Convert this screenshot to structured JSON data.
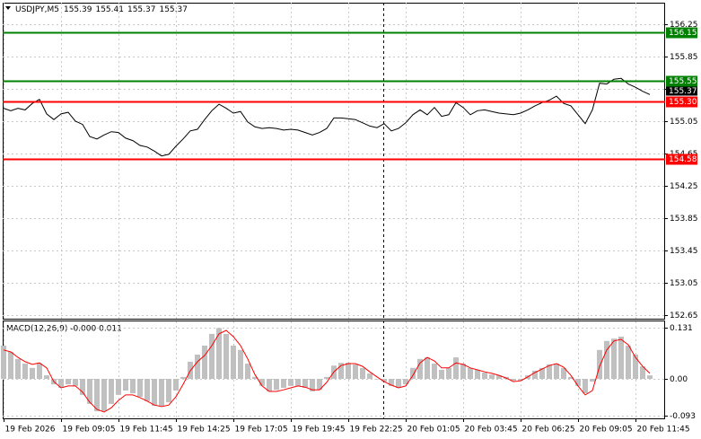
{
  "chart_data": [
    {
      "type": "line",
      "title": "USDJPY,M5",
      "ohlc": [
        155.39,
        155.41,
        155.37,
        155.37
      ],
      "color": "#000000",
      "values": [
        155.21,
        155.18,
        155.21,
        155.19,
        155.27,
        155.32,
        155.14,
        155.07,
        155.14,
        155.16,
        155.05,
        155.01,
        154.86,
        154.83,
        154.88,
        154.92,
        154.91,
        154.84,
        154.81,
        154.75,
        154.73,
        154.68,
        154.62,
        154.64,
        154.74,
        154.83,
        154.93,
        154.95,
        155.07,
        155.18,
        155.26,
        155.21,
        155.15,
        155.17,
        155.04,
        154.98,
        154.96,
        154.97,
        154.96,
        154.94,
        154.95,
        154.94,
        154.91,
        154.88,
        154.91,
        154.96,
        155.09,
        155.09,
        155.08,
        155.07,
        155.03,
        154.99,
        154.97,
        155.02,
        154.93,
        154.96,
        155.03,
        155.13,
        155.19,
        155.13,
        155.22,
        155.11,
        155.13,
        155.28,
        155.22,
        155.13,
        155.18,
        155.19,
        155.17,
        155.15,
        155.14,
        155.13,
        155.15,
        155.19,
        155.24,
        155.28,
        155.31,
        155.36,
        155.27,
        155.24,
        155.13,
        155.02,
        155.19,
        155.52,
        155.51,
        155.57,
        155.58,
        155.51,
        155.47,
        155.42,
        155.38
      ],
      "xlim": [
        -0.125,
        92.125
      ],
      "ylim": [
        152.606,
        156.517
      ],
      "yticks": [
        156.25,
        155.85,
        155.45,
        155.05,
        154.65,
        154.25,
        153.85,
        153.45,
        153.05,
        152.65
      ],
      "grid": true,
      "levels": [
        {
          "value": 156.15,
          "color": "#008000"
        },
        {
          "value": 155.55,
          "color": "#008000"
        },
        {
          "value": 155.3,
          "label": "155.30",
          "color": "#ff0000"
        },
        {
          "value": 154.58,
          "color": "#ff0000"
        }
      ]
    },
    {
      "type": "macd",
      "title": "MACD(12,26,9) -0.000 0.011",
      "histogram": {
        "color": "#c0c0c0",
        "values": [
          0.085,
          0.069,
          0.051,
          0.039,
          0.028,
          0.039,
          0.009,
          -0.014,
          -0.023,
          -0.014,
          -0.018,
          -0.041,
          -0.064,
          -0.083,
          -0.083,
          -0.064,
          -0.041,
          -0.03,
          -0.037,
          -0.046,
          -0.057,
          -0.069,
          -0.069,
          -0.06,
          -0.03,
          0.005,
          0.044,
          0.062,
          0.085,
          0.115,
          0.13,
          0.115,
          0.085,
          0.074,
          0.039,
          0.005,
          -0.018,
          -0.032,
          -0.028,
          -0.023,
          -0.018,
          -0.018,
          -0.023,
          -0.032,
          -0.028,
          0.005,
          0.034,
          0.041,
          0.041,
          0.037,
          0.028,
          0.014,
          0.0,
          -0.007,
          -0.018,
          -0.023,
          -0.014,
          0.028,
          0.051,
          0.055,
          0.039,
          0.023,
          0.028,
          0.055,
          0.039,
          0.028,
          0.023,
          0.016,
          0.011,
          0.009,
          0.005,
          -0.005,
          -0.005,
          0.009,
          0.021,
          0.028,
          0.037,
          0.039,
          0.028,
          0.005,
          -0.018,
          -0.037,
          -0.007,
          0.074,
          0.097,
          0.103,
          0.108,
          0.085,
          0.062,
          0.032,
          0.009
        ]
      },
      "signal": {
        "color": "#ff0000",
        "values": [
          0.074,
          0.069,
          0.055,
          0.044,
          0.037,
          0.041,
          0.028,
          -0.007,
          -0.023,
          -0.018,
          -0.018,
          -0.034,
          -0.06,
          -0.078,
          -0.085,
          -0.074,
          -0.055,
          -0.041,
          -0.041,
          -0.048,
          -0.057,
          -0.067,
          -0.071,
          -0.067,
          -0.046,
          -0.014,
          0.021,
          0.044,
          0.06,
          0.085,
          0.115,
          0.124,
          0.108,
          0.085,
          0.051,
          0.011,
          -0.018,
          -0.032,
          -0.032,
          -0.028,
          -0.023,
          -0.018,
          -0.021,
          -0.028,
          -0.028,
          -0.009,
          0.018,
          0.034,
          0.039,
          0.039,
          0.032,
          0.018,
          0.005,
          -0.007,
          -0.016,
          -0.023,
          -0.018,
          0.009,
          0.041,
          0.055,
          0.046,
          0.028,
          0.028,
          0.041,
          0.037,
          0.028,
          0.023,
          0.018,
          0.014,
          0.009,
          0.002,
          -0.007,
          -0.005,
          0.005,
          0.016,
          0.025,
          0.034,
          0.039,
          0.03,
          0.009,
          -0.018,
          -0.041,
          -0.03,
          0.032,
          0.074,
          0.097,
          0.101,
          0.087,
          0.055,
          0.032,
          0.014
        ]
      },
      "xlim": [
        -0.125,
        92.125
      ],
      "ylim": [
        -0.101,
        0.147
      ],
      "yticks": [
        0.131,
        {
          "value": 0,
          "label": "0.00"
        },
        -0.093
      ],
      "grid": true,
      "xticks": [
        {
          "value": 0,
          "label": "19 Feb 2026"
        },
        {
          "value": 8,
          "label": "19 Feb 09:05"
        },
        {
          "value": 16,
          "label": "19 Feb 11:45"
        },
        {
          "value": 24,
          "label": "19 Feb 14:25"
        },
        {
          "value": 32,
          "label": "19 Feb 17:05"
        },
        {
          "value": 40,
          "label": "19 Feb 19:45"
        },
        {
          "value": 48,
          "label": "19 Feb 22:25"
        },
        {
          "value": 56,
          "label": "20 Feb 01:05"
        },
        {
          "value": 64,
          "label": "20 Feb 03:45"
        },
        {
          "value": 72,
          "label": "20 Feb 06:25"
        },
        {
          "value": 80,
          "label": "20 Feb 09:05"
        },
        {
          "value": 88,
          "label": "20 Feb 11:45"
        }
      ]
    }
  ]
}
